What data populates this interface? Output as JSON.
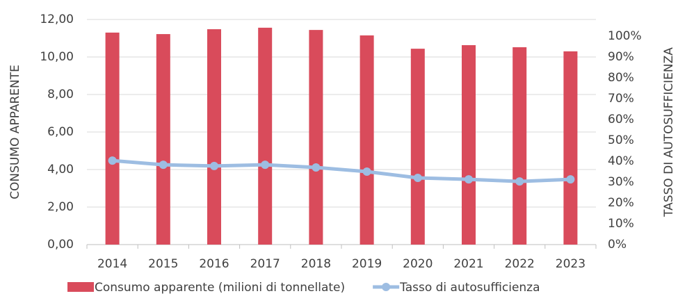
{
  "chart_data": {
    "type": "bar-line",
    "categories": [
      "2014",
      "2015",
      "2016",
      "2017",
      "2018",
      "2019",
      "2020",
      "2021",
      "2022",
      "2023"
    ],
    "series": [
      {
        "name": "Consumo apparente (milioni di tonnellate)",
        "type": "bar",
        "color": "#d94b5b",
        "values": [
          11.3,
          11.22,
          11.48,
          11.56,
          11.44,
          11.15,
          10.44,
          10.63,
          10.52,
          10.3
        ]
      },
      {
        "name": "Tasso di autosufficienza",
        "type": "line",
        "axis": "y2",
        "color": "#9dbde2",
        "values": [
          40.3,
          38.3,
          37.7,
          38.3,
          37,
          35,
          32,
          31.3,
          30.3,
          31.3
        ]
      }
    ],
    "ylabel": "CONSUMO APPARENTE",
    "y2label": "TASSO DI AUTOSUFFICIENZA",
    "ylim": [
      0,
      12
    ],
    "yticks": [
      {
        "value": 0,
        "label": "0,00"
      },
      {
        "value": 2,
        "label": "2,00"
      },
      {
        "value": 4,
        "label": "4,00"
      },
      {
        "value": 6,
        "label": "6,00"
      },
      {
        "value": 8,
        "label": "8,00"
      },
      {
        "value": 10,
        "label": "10,00"
      },
      {
        "value": 12,
        "label": "12,00"
      }
    ],
    "y2lim": [
      0,
      108
    ],
    "y2ticks": [
      {
        "value": 0,
        "label": "0%"
      },
      {
        "value": 10,
        "label": "10%"
      },
      {
        "value": 20,
        "label": "20%"
      },
      {
        "value": 30,
        "label": "30%"
      },
      {
        "value": 40,
        "label": "40%"
      },
      {
        "value": 50,
        "label": "50%"
      },
      {
        "value": 60,
        "label": "60%"
      },
      {
        "value": 70,
        "label": "70%"
      },
      {
        "value": 80,
        "label": "80%"
      },
      {
        "value": 90,
        "label": "90%"
      },
      {
        "value": 100,
        "label": "100%"
      }
    ],
    "grid": true,
    "legend": "bottom"
  }
}
